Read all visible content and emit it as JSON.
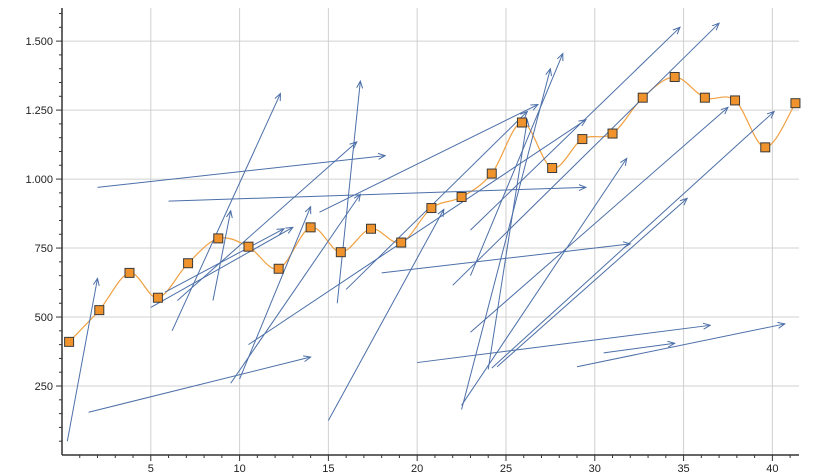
{
  "chart_data": {
    "type": "scatter",
    "title": "",
    "xlabel": "",
    "ylabel": "",
    "xlim": [
      0,
      41.5
    ],
    "ylim": [
      0,
      1620
    ],
    "x_ticks": [
      5,
      10,
      15,
      20,
      25,
      30,
      35,
      40
    ],
    "x_tick_labels": [
      "5",
      "10",
      "15",
      "20",
      "25",
      "30",
      "35",
      "40"
    ],
    "y_ticks": [
      250,
      500,
      750,
      1000,
      1250,
      1500
    ],
    "y_tick_labels": [
      "250",
      "500",
      "750",
      "1.000",
      "1.250",
      "1.500"
    ],
    "grid": true,
    "legend": "none",
    "colors": {
      "marker_fill": "#f0932c",
      "marker_stroke": "#3a3a3a",
      "curve": "#f0a040",
      "vector": "#4c6fa8",
      "grid": "#d0d0d0",
      "axis": "#333333"
    },
    "series": [
      {
        "type": "scatter-with-smooth-line",
        "x": [
          0.4,
          2.1,
          3.8,
          5.4,
          7.1,
          8.8,
          10.5,
          12.2,
          14.0,
          15.7,
          17.4,
          19.1,
          20.8,
          22.5,
          24.2,
          25.9,
          27.6,
          29.3,
          31.0,
          32.7,
          34.5,
          36.2,
          37.9,
          39.6,
          41.3
        ],
        "y": [
          410,
          525,
          660,
          570,
          695,
          785,
          755,
          675,
          825,
          735,
          820,
          770,
          895,
          935,
          1020,
          1205,
          1040,
          1145,
          1165,
          1295,
          1370,
          1295,
          1285,
          1115,
          1275
        ]
      },
      {
        "type": "vectors",
        "segments": [
          [
            [
              0.3,
              50
            ],
            [
              2.0,
              640
            ]
          ],
          [
            [
              1.5,
              155
            ],
            [
              14.0,
              355
            ]
          ],
          [
            [
              2.0,
              970
            ],
            [
              18.2,
              1085
            ]
          ],
          [
            [
              5.0,
              535
            ],
            [
              13.0,
              825
            ]
          ],
          [
            [
              5.8,
              590
            ],
            [
              12.5,
              820
            ]
          ],
          [
            [
              6.0,
              920
            ],
            [
              29.5,
              970
            ]
          ],
          [
            [
              6.2,
              450
            ],
            [
              12.3,
              1310
            ]
          ],
          [
            [
              6.5,
              560
            ],
            [
              16.6,
              1135
            ]
          ],
          [
            [
              8.5,
              560
            ],
            [
              9.5,
              885
            ]
          ],
          [
            [
              9.5,
              260
            ],
            [
              16.8,
              945
            ]
          ],
          [
            [
              10.0,
              275
            ],
            [
              14.0,
              900
            ]
          ],
          [
            [
              10.5,
              400
            ],
            [
              29.5,
              1215
            ]
          ],
          [
            [
              14.5,
              880
            ],
            [
              26.8,
              1270
            ]
          ],
          [
            [
              15.5,
              550
            ],
            [
              16.8,
              1355
            ]
          ],
          [
            [
              16.0,
              600
            ],
            [
              26.2,
              1245
            ]
          ],
          [
            [
              15.0,
              125
            ],
            [
              21.5,
              890
            ]
          ],
          [
            [
              18.0,
              660
            ],
            [
              32.0,
              765
            ]
          ],
          [
            [
              20.0,
              335
            ],
            [
              36.5,
              470
            ]
          ],
          [
            [
              22.5,
              165
            ],
            [
              27.5,
              1400
            ]
          ],
          [
            [
              22.5,
              180
            ],
            [
              31.8,
              1075
            ]
          ],
          [
            [
              23.0,
              650
            ],
            [
              28.2,
              1455
            ]
          ],
          [
            [
              23.0,
              445
            ],
            [
              37.5,
              1260
            ]
          ],
          [
            [
              23.0,
              815
            ],
            [
              34.8,
              1550
            ]
          ],
          [
            [
              24.0,
              310
            ],
            [
              26.2,
              1215
            ]
          ],
          [
            [
              24.2,
              315
            ],
            [
              40.1,
              1245
            ]
          ],
          [
            [
              24.5,
              320
            ],
            [
              35.2,
              930
            ]
          ],
          [
            [
              22.0,
              615
            ],
            [
              37.0,
              1565
            ]
          ],
          [
            [
              29.0,
              320
            ],
            [
              40.7,
              475
            ]
          ],
          [
            [
              30.5,
              370
            ],
            [
              34.5,
              405
            ]
          ]
        ]
      }
    ]
  }
}
